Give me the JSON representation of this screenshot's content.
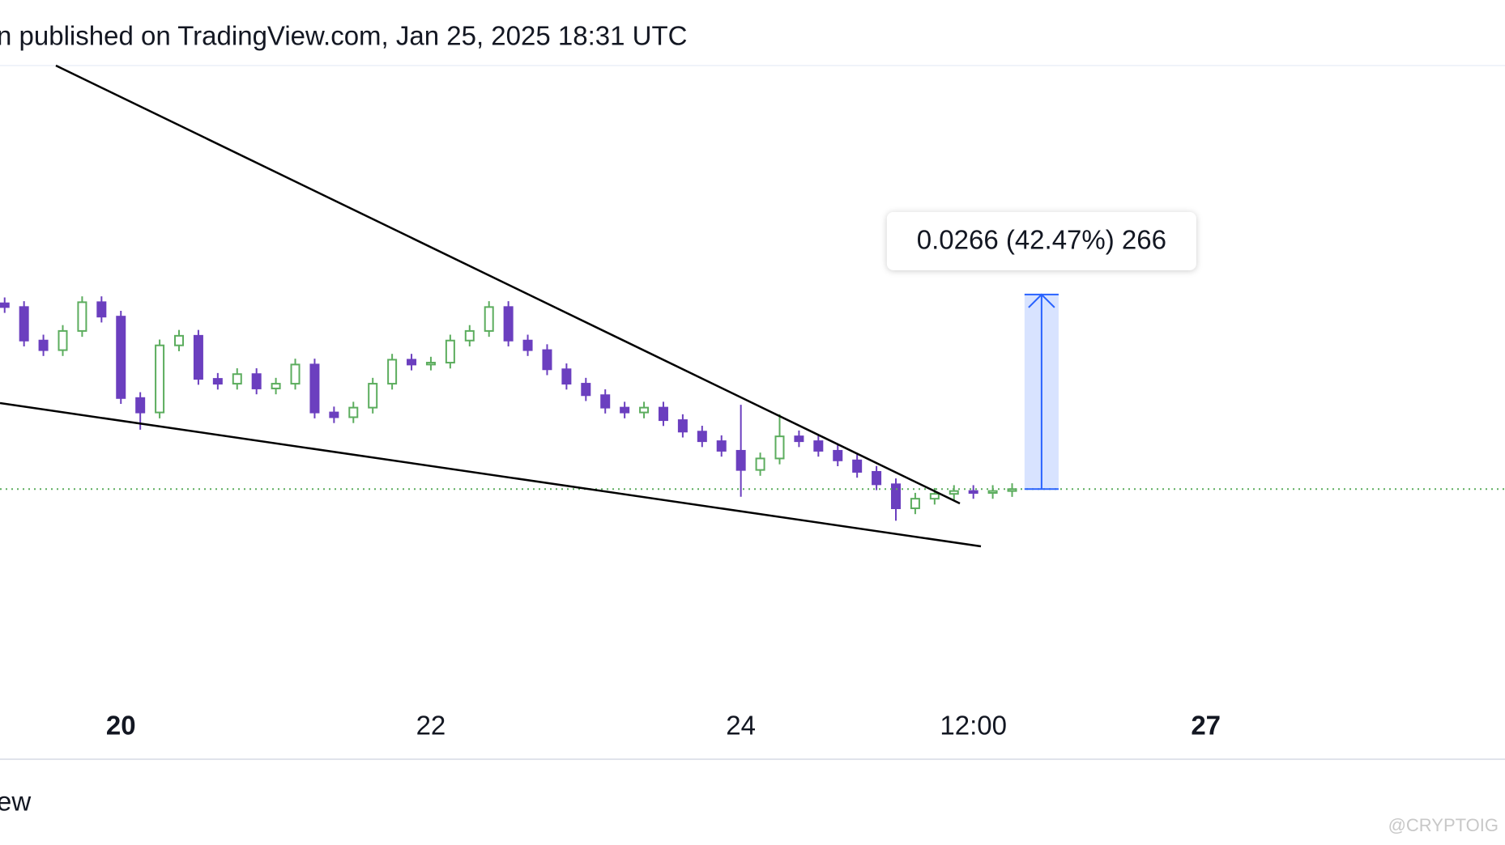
{
  "chart_data": {
    "type": "candlestick",
    "header": "n published on TradingView.com, Jan 25, 2025 18:31 UTC",
    "footer": "ew",
    "watermark": "@CRYPTOIG",
    "x": [
      19.25,
      19.375,
      19.5,
      19.625,
      19.75,
      19.875,
      20,
      20.125,
      20.25,
      20.375,
      20.5,
      20.625,
      20.75,
      20.875,
      21,
      21.125,
      21.25,
      21.375,
      21.5,
      21.625,
      21.75,
      21.875,
      22,
      22.125,
      22.25,
      22.375,
      22.5,
      22.625,
      22.75,
      22.875,
      23,
      23.125,
      23.25,
      23.375,
      23.5,
      23.625,
      23.75,
      23.875,
      24,
      24.125,
      24.25,
      24.375,
      24.5,
      24.625,
      24.75,
      24.875,
      25,
      25.125,
      25.25,
      25.375,
      25.5,
      25.625,
      25.75
    ],
    "open": [
      0.088,
      0.08749,
      0.08291,
      0.0816,
      0.08422,
      0.08815,
      0.08618,
      0.07505,
      0.07308,
      0.08225,
      0.08356,
      0.07767,
      0.07701,
      0.07832,
      0.07636,
      0.07701,
      0.07963,
      0.07308,
      0.07243,
      0.07374,
      0.07701,
      0.08029,
      0.07963,
      0.07989,
      0.08291,
      0.08422,
      0.08749,
      0.08291,
      0.0816,
      0.07898,
      0.07701,
      0.07544,
      0.07374,
      0.07308,
      0.07374,
      0.07203,
      0.07046,
      0.06915,
      0.06784,
      0.06522,
      0.06679,
      0.06981,
      0.06915,
      0.06784,
      0.06653,
      0.06496,
      0.06326,
      0.05998,
      0.06129,
      0.06195,
      0.06234,
      0.06208,
      0.06234
    ],
    "high": [
      0.0888,
      0.08829,
      0.08371,
      0.08502,
      0.08895,
      0.08895,
      0.08698,
      0.07585,
      0.08305,
      0.08436,
      0.08436,
      0.07847,
      0.07912,
      0.07912,
      0.07781,
      0.08043,
      0.08043,
      0.07388,
      0.07454,
      0.07781,
      0.08109,
      0.08109,
      0.08069,
      0.08371,
      0.08502,
      0.08829,
      0.08829,
      0.08371,
      0.0824,
      0.07978,
      0.07781,
      0.07624,
      0.07454,
      0.07454,
      0.07454,
      0.07283,
      0.07126,
      0.06995,
      0.07413,
      0.06759,
      0.07282,
      0.07061,
      0.06995,
      0.06864,
      0.06733,
      0.06576,
      0.06406,
      0.06209,
      0.06275,
      0.06314,
      0.06314,
      0.06314,
      0.0634
    ],
    "low": [
      0.08669,
      0.08211,
      0.0808,
      0.0808,
      0.08342,
      0.08538,
      0.07425,
      0.07072,
      0.07228,
      0.08145,
      0.07687,
      0.07621,
      0.07621,
      0.07556,
      0.07556,
      0.07621,
      0.07228,
      0.07163,
      0.07163,
      0.07294,
      0.07621,
      0.07883,
      0.07883,
      0.07909,
      0.08211,
      0.08342,
      0.08211,
      0.0808,
      0.07818,
      0.07621,
      0.07464,
      0.07294,
      0.07228,
      0.07228,
      0.07123,
      0.06966,
      0.06835,
      0.06704,
      0.06155,
      0.06442,
      0.06599,
      0.06835,
      0.06704,
      0.06573,
      0.06416,
      0.06246,
      0.05828,
      0.05918,
      0.06049,
      0.06115,
      0.06128,
      0.06128,
      0.06154
    ],
    "close": [
      0.08749,
      0.08291,
      0.0816,
      0.08422,
      0.08815,
      0.08618,
      0.07505,
      0.07308,
      0.08225,
      0.08356,
      0.07767,
      0.07701,
      0.07832,
      0.07636,
      0.07701,
      0.07963,
      0.07308,
      0.07243,
      0.07374,
      0.07701,
      0.08029,
      0.07963,
      0.07989,
      0.08291,
      0.08422,
      0.08749,
      0.08291,
      0.0816,
      0.07898,
      0.07701,
      0.07544,
      0.07374,
      0.07308,
      0.07374,
      0.07203,
      0.07046,
      0.06915,
      0.06784,
      0.06522,
      0.06679,
      0.06981,
      0.06915,
      0.06784,
      0.06653,
      0.06496,
      0.06326,
      0.05998,
      0.06129,
      0.06195,
      0.06234,
      0.06208,
      0.06234,
      0.0626
    ],
    "up_color": "#5cad5e",
    "down_color": "#6b3fbf",
    "xlim": [
      19.22,
      28.93
    ],
    "ylim": [
      0.0259,
      0.1205
    ],
    "xticks": [
      20,
      22,
      24,
      {
        "value": 25.5,
        "label": "12:00"
      },
      27
    ],
    "xtick_emphasis": [
      true,
      false,
      false,
      false,
      true
    ],
    "measure": {
      "x": [
        25.83,
        26.05
      ],
      "low": 0.0626,
      "high": 0.0892,
      "label": "0.0266 (42.47%) 266",
      "color": "#2962ff"
    }
  }
}
